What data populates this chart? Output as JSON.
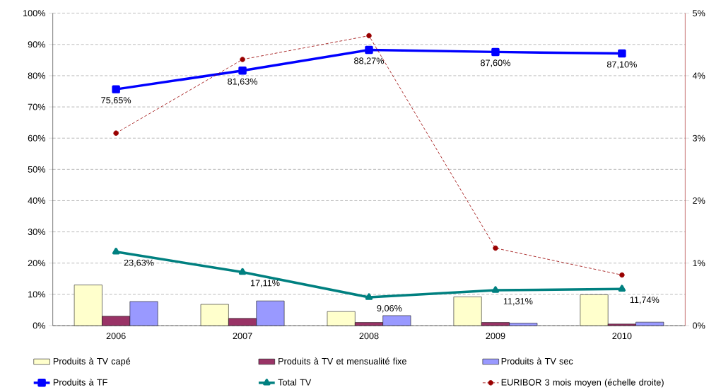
{
  "chart_data": {
    "type": "bar",
    "categories": [
      "2006",
      "2007",
      "2008",
      "2009",
      "2010"
    ],
    "series": [
      {
        "name": "Produits à TV capé",
        "color": "#ffffcc",
        "values": [
          13.0,
          6.8,
          4.5,
          9.2,
          9.9
        ]
      },
      {
        "name": "Produits à TV et mensualité fixe",
        "color": "#993366",
        "values": [
          3.0,
          2.3,
          1.0,
          1.0,
          0.5
        ]
      },
      {
        "name": "Produits à TV sec",
        "color": "#9999ff",
        "values": [
          7.7,
          7.9,
          3.2,
          0.8,
          1.1
        ]
      },
      {
        "name": "Produits à TF",
        "type": "line",
        "color": "#0000ff",
        "marker": "square",
        "line_style": "solid",
        "values": [
          75.65,
          81.63,
          88.27,
          87.6,
          87.1
        ],
        "value_labels": [
          "75,65%",
          "81,63%",
          "88,27%",
          "87,60%",
          "87,10%"
        ]
      },
      {
        "name": "Total TV",
        "type": "line",
        "color": "#008080",
        "marker": "triangle",
        "line_style": "solid",
        "values": [
          23.63,
          17.11,
          9.06,
          11.31,
          11.74
        ],
        "value_labels": [
          "23,63%",
          "17,11%",
          "9,06%",
          "11,31%",
          "11,74%"
        ]
      },
      {
        "name": "EURIBOR 3 mois moyen (échelle droite)",
        "type": "line",
        "axis": "y2",
        "color": "#990000",
        "marker": "circle",
        "line_style": "dashed",
        "values": [
          3.08,
          4.26,
          4.64,
          1.24,
          0.81
        ]
      }
    ],
    "ylim": [
      0,
      100
    ],
    "yticks": [
      {
        "value": 0,
        "label": "0%"
      },
      {
        "value": 10,
        "label": "10%"
      },
      {
        "value": 20,
        "label": "20%"
      },
      {
        "value": 30,
        "label": "30%"
      },
      {
        "value": 40,
        "label": "40%"
      },
      {
        "value": 50,
        "label": "50%"
      },
      {
        "value": 60,
        "label": "60%"
      },
      {
        "value": 70,
        "label": "70%"
      },
      {
        "value": 80,
        "label": "80%"
      },
      {
        "value": 90,
        "label": "90%"
      },
      {
        "value": 100,
        "label": "100%"
      }
    ],
    "y2lim": [
      0,
      5
    ],
    "y2ticks": [
      {
        "value": 0,
        "label": "0%"
      },
      {
        "value": 1,
        "label": "1%"
      },
      {
        "value": 2,
        "label": "2%"
      },
      {
        "value": 3,
        "label": "3%"
      },
      {
        "value": 4,
        "label": "4%"
      },
      {
        "value": 5,
        "label": "5%"
      }
    ],
    "grid": "y",
    "legend": "bottom"
  }
}
